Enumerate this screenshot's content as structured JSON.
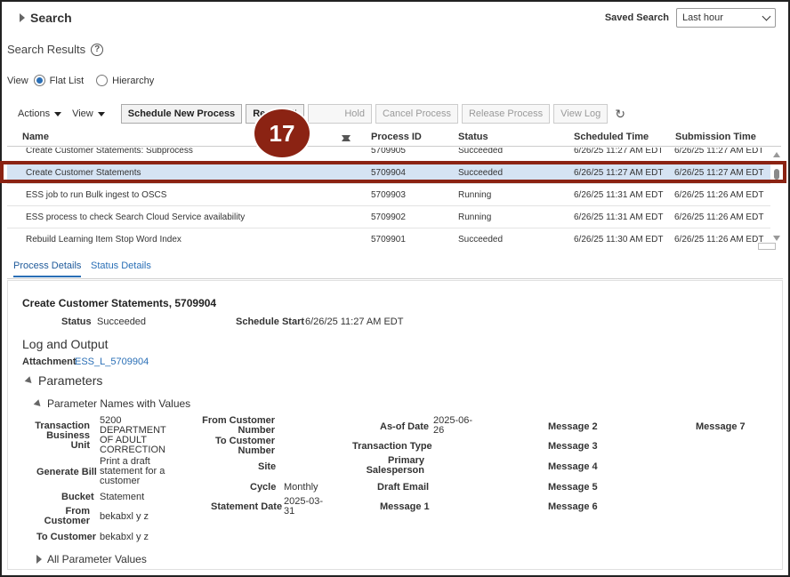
{
  "search": {
    "title": "Search",
    "saved_label": "Saved Search",
    "saved_value": "Last hour"
  },
  "results": {
    "title": "Search Results",
    "help": "?"
  },
  "view": {
    "label": "View",
    "flat": "Flat List",
    "hierarchy": "Hierarchy"
  },
  "toolbar": {
    "actions": "Actions",
    "view": "View",
    "schedule": "Schedule New Process",
    "resubmit": "Resubmit",
    "hold": "Hold",
    "cancel": "Cancel Process",
    "release": "Release Process",
    "log": "View Log"
  },
  "step_badge": "17",
  "table": {
    "headers": {
      "name": "Name",
      "pid": "Process ID",
      "status": "Status",
      "sched": "Scheduled Time",
      "sub": "Submission Time"
    },
    "rows": [
      {
        "name": "Create Customer Statements: Subprocess",
        "pid": "5709905",
        "status": "Succeeded",
        "sched": "6/26/25 11:27 AM EDT",
        "sub": "6/26/25 11:27 AM EDT"
      },
      {
        "name": "Create Customer Statements",
        "pid": "5709904",
        "status": "Succeeded",
        "sched": "6/26/25 11:27 AM EDT",
        "sub": "6/26/25 11:27 AM EDT"
      },
      {
        "name": "ESS job to run Bulk ingest to OSCS",
        "pid": "5709903",
        "status": "Running",
        "sched": "6/26/25 11:31 AM EDT",
        "sub": "6/26/25 11:26 AM EDT"
      },
      {
        "name": "ESS process to check Search Cloud Service availability",
        "pid": "5709902",
        "status": "Running",
        "sched": "6/26/25 11:31 AM EDT",
        "sub": "6/26/25 11:26 AM EDT"
      },
      {
        "name": "Rebuild Learning Item Stop Word Index",
        "pid": "5709901",
        "status": "Succeeded",
        "sched": "6/26/25 11:30 AM EDT",
        "sub": "6/26/25 11:26 AM EDT"
      }
    ]
  },
  "tabs": {
    "process_details": "Process Details",
    "status_details": "Status Details"
  },
  "detail": {
    "title": "Create Customer Statements, 5709904",
    "status_label": "Status",
    "status_value": "Succeeded",
    "schedule_label": "Schedule Start",
    "schedule_value": "6/26/25 11:27 AM EDT",
    "log_heading": "Log and Output",
    "attachment_label": "Attachment",
    "attachment_value": "ESS_L_5709904",
    "parameters_heading": "Parameters",
    "param_names_heading": "Parameter Names with Values",
    "all_params": "All Parameter Values",
    "params": {
      "tbu_label": "Transaction Business Unit",
      "tbu_value": "5200 DEPARTMENT OF ADULT CORRECTION",
      "generate_bill_label": "Generate Bill",
      "generate_bill_value": "Print a draft statement for a customer",
      "bucket_label": "Bucket",
      "bucket_value": "Statement",
      "from_customer_label": "From Customer",
      "from_customer_value": "bekabxl y z",
      "to_customer_label": "To Customer",
      "to_customer_value": "bekabxl y z",
      "from_cust_num_label": "From Customer Number",
      "to_cust_num_label": "To Customer Number",
      "site_label": "Site",
      "cycle_label": "Cycle",
      "cycle_value": "Monthly",
      "statement_date_label": "Statement Date",
      "statement_date_value": "2025-03-31",
      "asof_label": "As-of Date",
      "asof_value": "2025-06-26",
      "txn_type_label": "Transaction Type",
      "primary_sp_label": "Primary Salesperson",
      "draft_email_label": "Draft Email",
      "message1_label": "Message 1",
      "message2_label": "Message 2",
      "message3_label": "Message 3",
      "message4_label": "Message 4",
      "message5_label": "Message 5",
      "message6_label": "Message 6",
      "message7_label": "Message 7"
    }
  }
}
